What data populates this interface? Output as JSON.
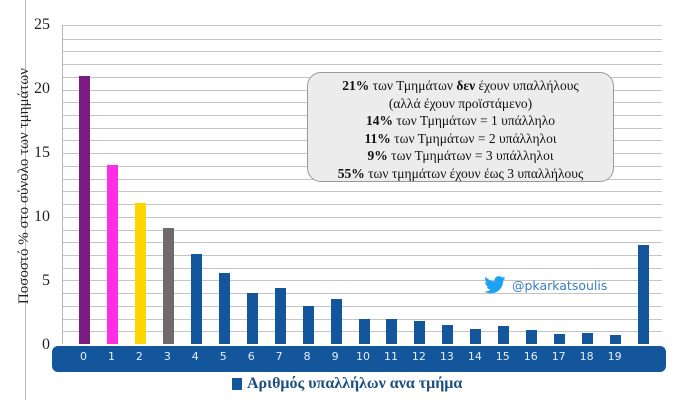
{
  "chart_data": {
    "type": "bar",
    "title": "",
    "xlabel": "Αριθμός υπαλλήλων ανα τμήμα",
    "ylabel": "Ποσοστό % στο σύνολο των τμημάτων",
    "ylim": [
      0,
      25
    ],
    "yticks": [
      0,
      5,
      10,
      15,
      20,
      25
    ],
    "grid": true,
    "minor_gridline_step": 1,
    "legend_position": "bottom",
    "categories": [
      "0",
      "1",
      "2",
      "3",
      "4",
      "5",
      "6",
      "7",
      "8",
      "9",
      "10",
      "11",
      "12",
      "13",
      "14",
      "15",
      "16",
      "17",
      "18",
      "19",
      ""
    ],
    "values": [
      21.1,
      14.1,
      11.1,
      9.1,
      7.1,
      5.6,
      4.0,
      4.4,
      3.0,
      3.5,
      2.0,
      2.0,
      1.8,
      1.5,
      1.2,
      1.4,
      1.1,
      0.8,
      0.9,
      0.7,
      7.8
    ],
    "bar_colors": [
      "#7b1c82",
      "#ff2ee6",
      "#ffd600",
      "#716a6c",
      "#13569c",
      "#13569c",
      "#13569c",
      "#13569c",
      "#13569c",
      "#13569c",
      "#13569c",
      "#13569c",
      "#13569c",
      "#13569c",
      "#13569c",
      "#13569c",
      "#13569c",
      "#13569c",
      "#13569c",
      "#13569c",
      "#13569c"
    ],
    "series": [
      {
        "name": "Αριθμός υπαλλήλων ανα τμήμα",
        "color": "#13569c"
      }
    ],
    "annotations": [
      "21% των Τμημάτων δεν έχουν υπαλλήλους (αλλά έχουν προϊστάμενο)",
      "14% των Τμημάτων = 1 υπάλληλο",
      "11% των Τμημάτων = 2 υπάλληλοι",
      "9% των Τμημάτων = 3 υπάλληλοι",
      "55% των τμημάτων έχουν έως 3 υπαλλήλους",
      "@pkarkatsoulis"
    ]
  },
  "axis": {
    "ylabel": "Ποσοστό  %  στο σύνολο των τμημάτων",
    "yticks": [
      "25",
      "20",
      "15",
      "10",
      "5",
      "0"
    ],
    "xticks": [
      "0",
      "1",
      "2",
      "3",
      "4",
      "5",
      "6",
      "7",
      "8",
      "9",
      "10",
      "11",
      "12",
      "13",
      "14",
      "15",
      "16",
      "17",
      "18",
      "19"
    ]
  },
  "legend": {
    "label": "Αριθμός υπαλλήλων ανα τμήμα",
    "color": "#13569c"
  },
  "note": {
    "line1_bold": "21%",
    "line1_a": " των Τμημάτων ",
    "line1_bold2": "δεν",
    "line1_b": " έχουν υπαλλήλους",
    "line2": "(αλλά έχουν προϊστάμενο)",
    "line3_bold": "14%",
    "line3": "  των Τμημάτων  = 1 υπάλληλο",
    "line4_bold": "11%",
    "line4": " των Τμημάτων = 2 υπάλληλοι",
    "line5_bold": "9%",
    "line5": " των Τμημάτων = 3 υπάλληλοι",
    "line6_bold": "55%",
    "line6": " των τμημάτων έχουν έως 3 υπαλλήλους"
  },
  "twitter": {
    "handle": "@pkarkatsoulis",
    "icon": "twitter-bird-icon",
    "color": "#1da1f2"
  }
}
